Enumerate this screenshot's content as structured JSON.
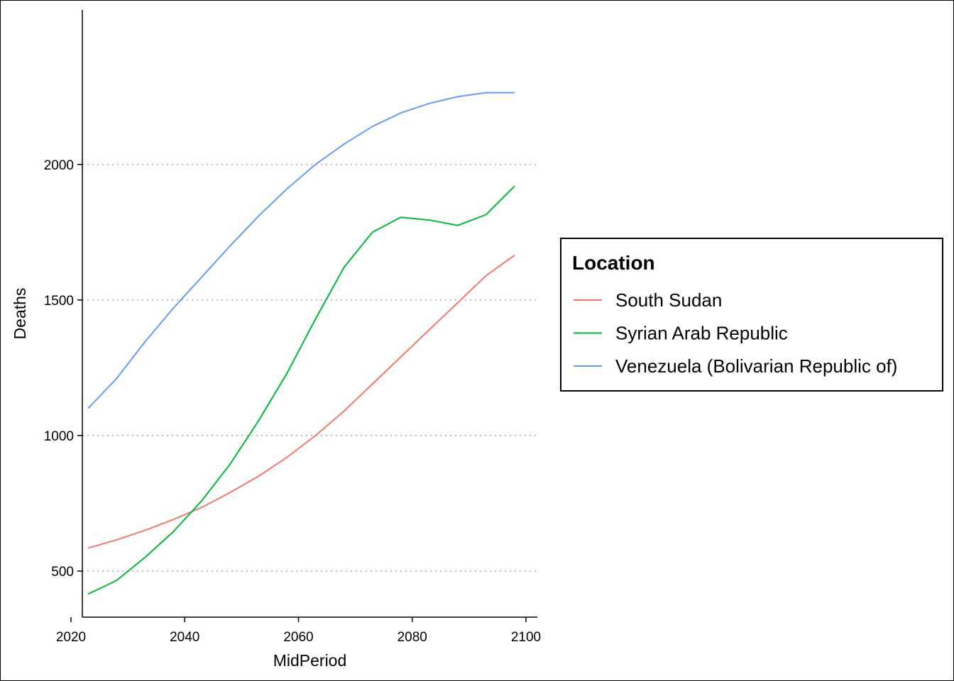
{
  "chart_data": {
    "type": "line",
    "xlabel": "MidPeriod",
    "ylabel": "Deaths",
    "xlim": [
      2022,
      2102
    ],
    "ylim": [
      330,
      2570
    ],
    "x_ticks": [
      2020,
      2040,
      2060,
      2080,
      2100
    ],
    "y_ticks": [
      500,
      1000,
      1500,
      2000
    ],
    "grid": "horizontal dotted",
    "legend": {
      "title": "Location",
      "placement": "right"
    },
    "x": [
      2023,
      2028,
      2033,
      2038,
      2043,
      2048,
      2053,
      2058,
      2063,
      2068,
      2073,
      2078,
      2083,
      2088,
      2093,
      2098
    ],
    "series": [
      {
        "name": "South Sudan",
        "color": "#F8766D",
        "values": [
          585,
          615,
          650,
          690,
          735,
          790,
          850,
          920,
          1000,
          1090,
          1190,
          1290,
          1390,
          1490,
          1590,
          1665
        ]
      },
      {
        "name": "Syrian Arab Republic",
        "color": "#00BA38",
        "values": [
          415,
          465,
          550,
          645,
          760,
          895,
          1055,
          1230,
          1430,
          1620,
          1750,
          1805,
          1795,
          1775,
          1815,
          1920
        ]
      },
      {
        "name": "Venezuela (Bolivarian Republic of)",
        "color": "#619CFF",
        "values": [
          1100,
          1210,
          1345,
          1470,
          1585,
          1700,
          1810,
          1910,
          2000,
          2075,
          2140,
          2190,
          2225,
          2250,
          2265,
          2265
        ]
      }
    ]
  }
}
